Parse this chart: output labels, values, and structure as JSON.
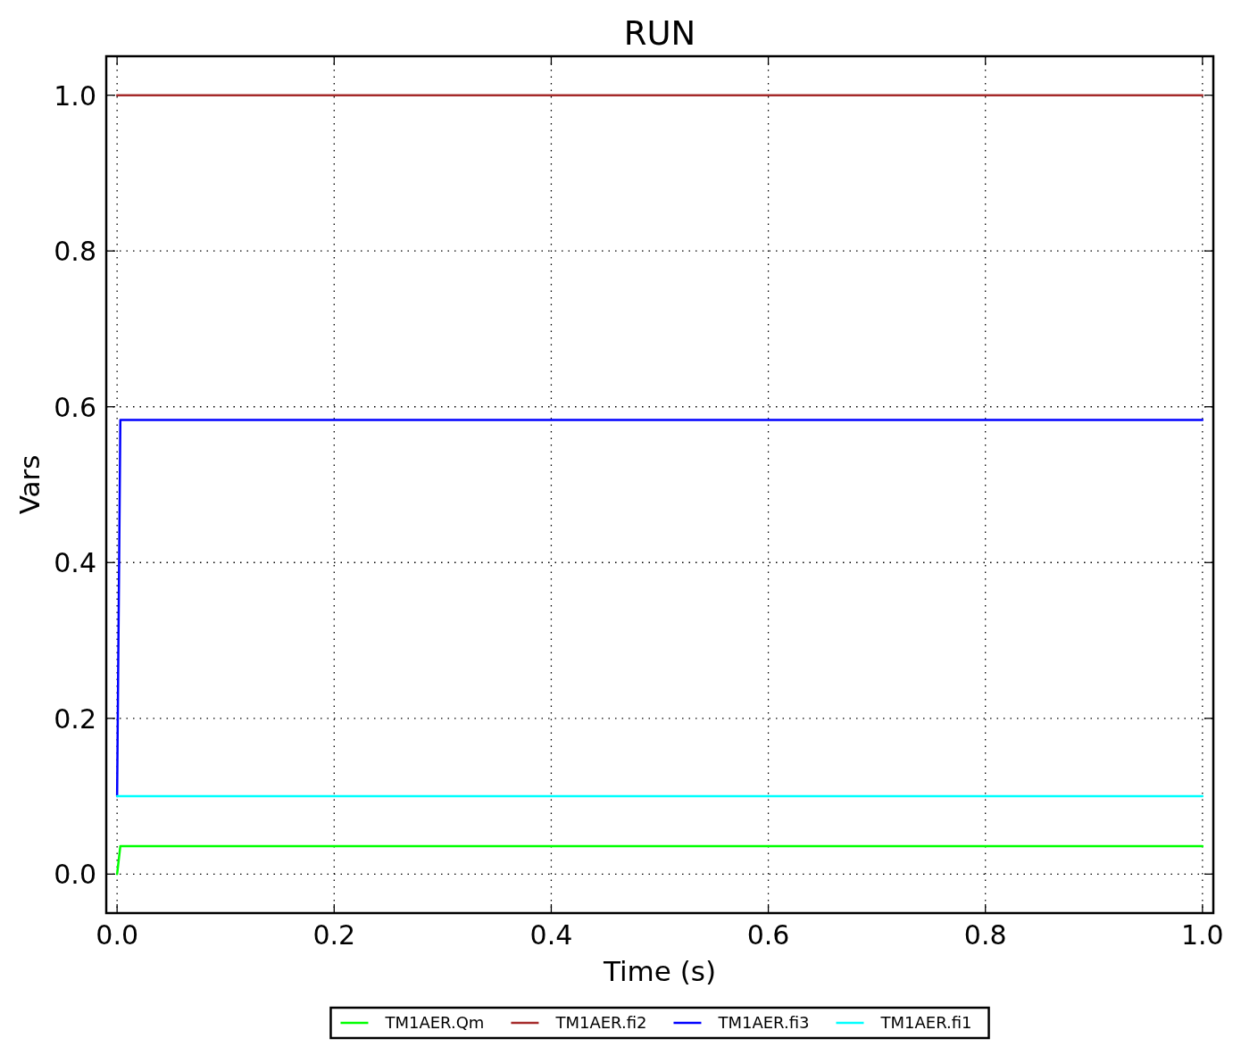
{
  "chart_data": {
    "type": "line",
    "title": "RUN",
    "xlabel": "Time (s)",
    "ylabel": "Vars",
    "xlim": [
      -0.01,
      1.01
    ],
    "ylim": [
      -0.05,
      1.05
    ],
    "xticks": [
      {
        "value": 0,
        "label": "0.0"
      },
      {
        "value": 0.2,
        "label": "0.2"
      },
      {
        "value": 0.4,
        "label": "0.4"
      },
      {
        "value": 0.6,
        "label": "0.6"
      },
      {
        "value": 0.8,
        "label": "0.8"
      },
      {
        "value": 1,
        "label": "1.0"
      }
    ],
    "yticks": [
      {
        "value": 0,
        "label": "0.0"
      },
      {
        "value": 0.2,
        "label": "0.2"
      },
      {
        "value": 0.4,
        "label": "0.4"
      },
      {
        "value": 0.6,
        "label": "0.6"
      },
      {
        "value": 0.8,
        "label": "0.8"
      },
      {
        "value": 1,
        "label": "1.0"
      }
    ],
    "grid": true,
    "legend": "bottom",
    "line_style": "solid",
    "series": [
      {
        "name": "TM1AER.Qm",
        "color": "#00ff00",
        "x": [
          0,
          0.003,
          1
        ],
        "values": [
          0,
          0.036,
          0.036
        ]
      },
      {
        "name": "TM1AER.fi2",
        "color": "#a52a2a",
        "x": [
          0,
          1
        ],
        "values": [
          1,
          1
        ]
      },
      {
        "name": "TM1AER.fi3",
        "color": "#0000ff",
        "x": [
          0,
          0.003,
          1
        ],
        "values": [
          0.1,
          0.583,
          0.583
        ]
      },
      {
        "name": "TM1AER.fi1",
        "color": "#00ffff",
        "x": [
          0,
          1
        ],
        "values": [
          0.1,
          0.1
        ]
      }
    ]
  }
}
